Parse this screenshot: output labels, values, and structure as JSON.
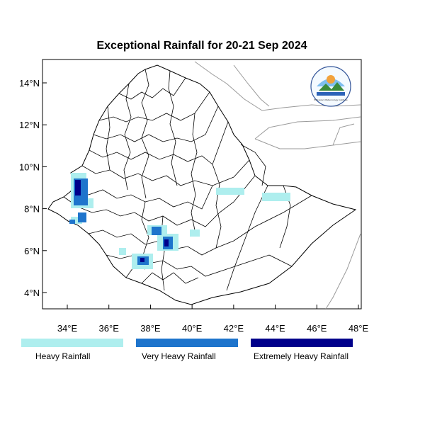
{
  "title": "Exceptional Rainfall for 20-21 Sep 2024",
  "axes": {
    "x_ticks": [
      "34°E",
      "36°E",
      "38°E",
      "40°E",
      "42°E",
      "44°E",
      "46°E",
      "48°E"
    ],
    "y_ticks": [
      "14°N",
      "12°N",
      "10°N",
      "8°N",
      "6°N",
      "4°N"
    ]
  },
  "legend": {
    "items": [
      {
        "label": "Heavy Rainfall",
        "color": "#aeeeee"
      },
      {
        "label": "Very Heavy Rainfall",
        "color": "#1e74cc"
      },
      {
        "label": "Extremely Heavy Rainfall",
        "color": "#00008b"
      }
    ]
  },
  "logo": {
    "text": "Ethiopian Meteorology Institute"
  }
}
